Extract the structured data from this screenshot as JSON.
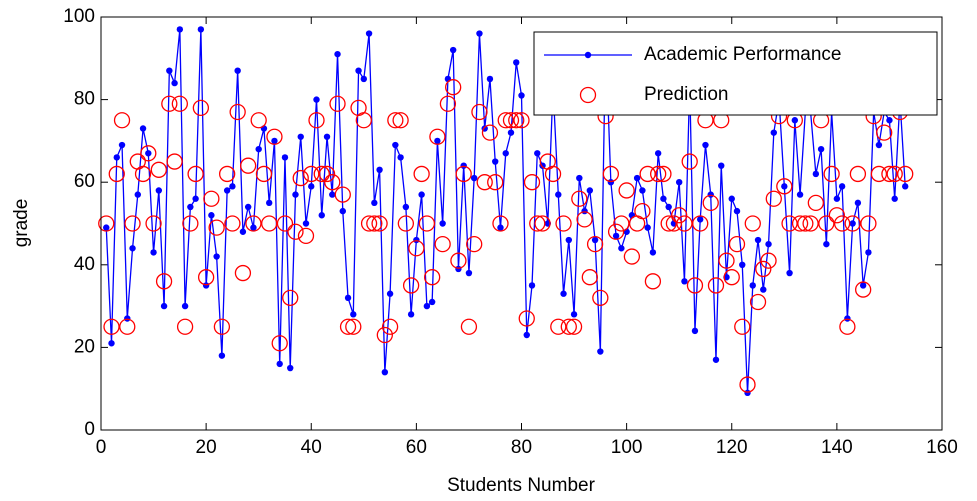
{
  "chart_data": {
    "type": "line",
    "xlabel": "Students Number",
    "ylabel": "grade",
    "x": [
      1,
      2,
      3,
      4,
      5,
      6,
      7,
      8,
      9,
      10,
      11,
      12,
      13,
      14,
      15,
      16,
      17,
      18,
      19,
      20,
      21,
      22,
      23,
      24,
      25,
      26,
      27,
      28,
      29,
      30,
      31,
      32,
      33,
      34,
      35,
      36,
      37,
      38,
      39,
      40,
      41,
      42,
      43,
      44,
      45,
      46,
      47,
      48,
      49,
      50,
      51,
      52,
      53,
      54,
      55,
      56,
      57,
      58,
      59,
      60,
      61,
      62,
      63,
      64,
      65,
      66,
      67,
      68,
      69,
      70,
      71,
      72,
      73,
      74,
      75,
      76,
      77,
      78,
      79,
      80,
      81,
      82,
      83,
      84,
      85,
      86,
      87,
      88,
      89,
      90,
      91,
      92,
      93,
      94,
      95,
      96,
      97,
      98,
      99,
      100,
      101,
      102,
      103,
      104,
      105,
      106,
      107,
      108,
      109,
      110,
      111,
      112,
      113,
      114,
      115,
      116,
      117,
      118,
      119,
      120,
      121,
      122,
      123,
      124,
      125,
      126,
      127,
      128,
      129,
      130,
      131,
      132,
      133,
      134,
      135,
      136,
      137,
      138,
      139,
      140,
      141,
      142,
      143,
      144,
      145,
      146,
      147,
      148,
      149,
      150,
      151,
      152,
      153
    ],
    "series": [
      {
        "name": "Academic Performance",
        "color": "#0000ff",
        "style": "line-dot",
        "values": [
          49,
          21,
          66,
          69,
          27,
          44,
          57,
          73,
          67,
          43,
          58,
          30,
          87,
          84,
          97,
          30,
          54,
          56,
          97,
          35,
          52,
          42,
          18,
          58,
          59,
          87,
          48,
          54,
          49,
          68,
          73,
          55,
          70,
          16,
          66,
          15,
          57,
          71,
          50,
          59,
          80,
          52,
          71,
          57,
          91,
          53,
          32,
          28,
          87,
          85,
          96,
          55,
          63,
          14,
          33,
          69,
          66,
          54,
          28,
          46,
          57,
          30,
          31,
          70,
          50,
          85,
          92,
          39,
          64,
          38,
          61,
          96,
          73,
          85,
          65,
          49,
          67,
          72,
          89,
          81,
          23,
          35,
          67,
          64,
          50,
          83,
          57,
          33,
          46,
          28,
          61,
          53,
          58,
          46,
          19,
          95,
          60,
          47,
          44,
          48,
          52,
          61,
          58,
          49,
          43,
          67,
          56,
          54,
          50,
          60,
          36,
          84,
          24,
          51,
          69,
          57,
          17,
          64,
          37,
          56,
          53,
          40,
          9,
          35,
          46,
          34,
          45,
          72,
          80,
          59,
          38,
          75,
          57,
          77,
          77,
          62,
          68,
          45,
          77,
          56,
          59,
          27,
          50,
          55,
          35,
          43,
          77,
          69,
          77,
          75,
          56,
          80,
          59
        ]
      },
      {
        "name": "Prediction",
        "color": "#ff0000",
        "style": "circle",
        "values": [
          50,
          25,
          62,
          75,
          25,
          50,
          65,
          62,
          67,
          50,
          63,
          36,
          79,
          65,
          79,
          25,
          50,
          62,
          78,
          37,
          56,
          49,
          25,
          62,
          50,
          77,
          38,
          64,
          50,
          75,
          62,
          50,
          71,
          21,
          50,
          32,
          48,
          61,
          47,
          62,
          75,
          62,
          62,
          60,
          79,
          57,
          25,
          25,
          78,
          75,
          50,
          50,
          50,
          23,
          25,
          75,
          75,
          50,
          35,
          44,
          62,
          50,
          37,
          71,
          45,
          79,
          83,
          41,
          62,
          25,
          45,
          77,
          60,
          72,
          60,
          50,
          75,
          75,
          75,
          75,
          27,
          60,
          50,
          50,
          65,
          62,
          25,
          50,
          25,
          25,
          56,
          51,
          37,
          45,
          32,
          76,
          62,
          48,
          50,
          58,
          42,
          50,
          53,
          62,
          36,
          62,
          62,
          50,
          50,
          52,
          50,
          65,
          35,
          50,
          75,
          55,
          35,
          75,
          41,
          37,
          45,
          25,
          11,
          50,
          31,
          39,
          41,
          56,
          76,
          59,
          50,
          75,
          50,
          50,
          50,
          55,
          75,
          50,
          62,
          52,
          50,
          25,
          50,
          62,
          34,
          50,
          76,
          62,
          72,
          62,
          62,
          77,
          62
        ]
      }
    ],
    "xlim": [
      0,
      160
    ],
    "xticks": [
      0,
      20,
      40,
      60,
      80,
      100,
      120,
      140,
      160
    ],
    "ylim": [
      0,
      100
    ],
    "yticks": [
      0,
      20,
      40,
      60,
      80,
      100
    ],
    "legend": "upper right"
  }
}
